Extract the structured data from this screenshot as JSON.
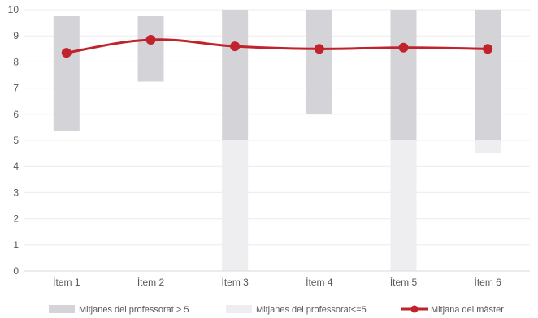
{
  "chart_data": {
    "type": "bar",
    "categories": [
      "Ítem 1",
      "Ítem 2",
      "Ítem 3",
      "Ítem 4",
      "Ítem 5",
      "Ítem 6"
    ],
    "ylim": [
      0,
      10
    ],
    "y_ticks": [
      "0",
      "1",
      "2",
      "3",
      "4",
      "5",
      "6",
      "7",
      "8",
      "9",
      "10"
    ],
    "grid": true,
    "legend_position": "bottom",
    "series": [
      {
        "name": "Mitjanes del professorat > 5",
        "kind": "range",
        "color": "#d4d3d8",
        "ranges": [
          [
            5.35,
            9.75
          ],
          [
            7.25,
            9.75
          ],
          [
            5.0,
            10.0
          ],
          [
            6.0,
            10.0
          ],
          [
            5.0,
            10.0
          ],
          [
            5.0,
            10.0
          ]
        ]
      },
      {
        "name": "Mitjanes del professorat<=5",
        "kind": "range",
        "color": "#eeeef0",
        "ranges": [
          null,
          null,
          [
            0.0,
            5.0
          ],
          null,
          [
            0.0,
            5.0
          ],
          [
            4.5,
            5.0
          ]
        ]
      },
      {
        "name": "Mitjana del màster",
        "kind": "line",
        "color": "#c0232c",
        "values": [
          8.35,
          8.85,
          8.6,
          8.5,
          8.55,
          8.5
        ]
      }
    ]
  }
}
